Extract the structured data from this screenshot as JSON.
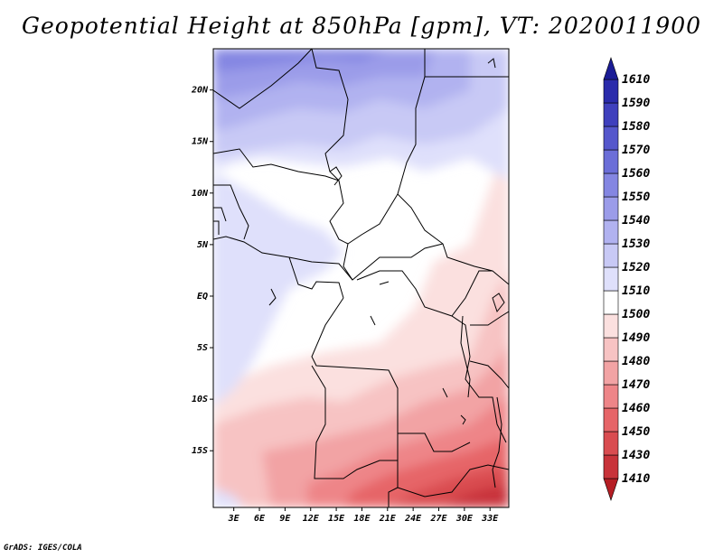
{
  "title": "Geopotential Height at 850hPa [gpm], VT: 2020011900",
  "credit": "GrADS: IGES/COLA",
  "map": {
    "lon_range": [
      0,
      35
    ],
    "lat_range": [
      -20,
      24
    ],
    "lon_ticks": [
      "3E",
      "6E",
      "9E",
      "12E",
      "15E",
      "18E",
      "21E",
      "24E",
      "27E",
      "30E",
      "33E"
    ],
    "lat_ticks": [
      "20N",
      "15N",
      "10N",
      "5N",
      "EQ",
      "5S",
      "10S",
      "15S"
    ]
  },
  "colorbar": {
    "levels": [
      "1410",
      "1430",
      "1450",
      "1460",
      "1470",
      "1480",
      "1490",
      "1500",
      "1510",
      "1520",
      "1530",
      "1540",
      "1550",
      "1560",
      "1570",
      "1580",
      "1590",
      "1610"
    ],
    "colors": [
      "#b51e24",
      "#c8333a",
      "#d94c50",
      "#e66568",
      "#ee8588",
      "#f2a3a4",
      "#f7c3c3",
      "#fbe0df",
      "#ffffff",
      "#dfe0fb",
      "#c8c9f5",
      "#b1b2f0",
      "#9b9ce9",
      "#8486e2",
      "#6b6ed8",
      "#5557cc",
      "#3f40bd",
      "#2a2bab",
      "#1b1c96"
    ]
  }
}
